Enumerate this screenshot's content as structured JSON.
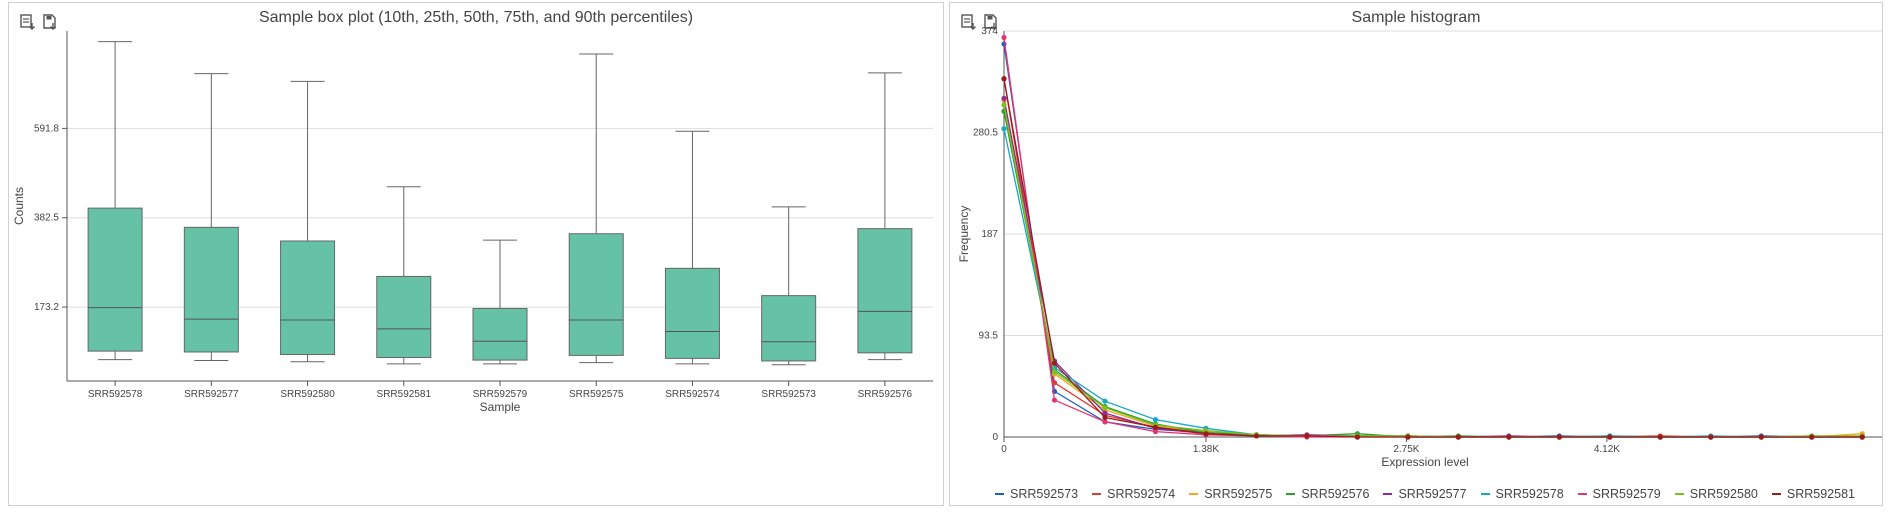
{
  "header": {
    "clipped_caption": ""
  },
  "chart_data": [
    {
      "type": "box",
      "title": "Sample box plot (10th, 25th, 50th, 75th, and 90th percentiles)",
      "xlabel": "Sample",
      "ylabel": "Counts",
      "ylim": [
        0,
        820
      ],
      "yticks": [
        173.2,
        382.5,
        591.8
      ],
      "ytick_labels": [
        "173.2",
        "382.5",
        "591.8"
      ],
      "box_color": "#66c2a5",
      "categories": [
        "SRR592578",
        "SRR592577",
        "SRR592580",
        "SRR592581",
        "SRR592579",
        "SRR592575",
        "SRR592574",
        "SRR592573",
        "SRR592576"
      ],
      "boxes": [
        {
          "p10": 50,
          "p25": 70,
          "p50": 172,
          "p75": 405,
          "p90": 795
        },
        {
          "p10": 48,
          "p25": 68,
          "p50": 145,
          "p75": 360,
          "p90": 720
        },
        {
          "p10": 45,
          "p25": 62,
          "p50": 143,
          "p75": 328,
          "p90": 702
        },
        {
          "p10": 40,
          "p25": 55,
          "p50": 122,
          "p75": 245,
          "p90": 455
        },
        {
          "p10": 40,
          "p25": 49,
          "p50": 93,
          "p75": 170,
          "p90": 330
        },
        {
          "p10": 43,
          "p25": 60,
          "p50": 143,
          "p75": 345,
          "p90": 766
        },
        {
          "p10": 40,
          "p25": 53,
          "p50": 116,
          "p75": 264,
          "p90": 585
        },
        {
          "p10": 38,
          "p25": 47,
          "p50": 92,
          "p75": 200,
          "p90": 408
        },
        {
          "p10": 50,
          "p25": 66,
          "p50": 163,
          "p75": 357,
          "p90": 722
        }
      ]
    },
    {
      "type": "line",
      "title": "Sample histogram",
      "xlabel": "Expression level",
      "ylabel": "Frequency",
      "xlim": [
        0,
        6000
      ],
      "ylim": [
        0,
        374
      ],
      "xticks": [
        0,
        1380,
        2750,
        4120
      ],
      "xtick_labels": [
        "0",
        "1.38K",
        "2.75K",
        "4.12K"
      ],
      "yticks": [
        0,
        93.5,
        187,
        280.5,
        374
      ],
      "ytick_labels": [
        "0",
        "93.5",
        "187",
        "280.5",
        "374"
      ],
      "x": [
        0,
        345,
        690,
        1035,
        1380,
        1725,
        2070,
        2415,
        2760,
        3105,
        3450,
        3795,
        4140,
        4485,
        4830,
        5175,
        5520,
        5865
      ],
      "series": [
        {
          "name": "SRR592573",
          "color": "#1f5fbf",
          "values": [
            362,
            42,
            14,
            7,
            4,
            2,
            1,
            1,
            1,
            0,
            0,
            1,
            0,
            0,
            0,
            1,
            0,
            0
          ]
        },
        {
          "name": "SRR592574",
          "color": "#e03c31",
          "values": [
            330,
            50,
            20,
            9,
            4,
            2,
            1,
            1,
            0,
            0,
            0,
            0,
            0,
            1,
            0,
            0,
            0,
            0
          ]
        },
        {
          "name": "SRR592575",
          "color": "#f5a623",
          "values": [
            310,
            58,
            25,
            10,
            5,
            2,
            1,
            0,
            1,
            0,
            0,
            0,
            0,
            0,
            0,
            0,
            0,
            3
          ]
        },
        {
          "name": "SRR592576",
          "color": "#2ca02c",
          "values": [
            300,
            62,
            28,
            12,
            4,
            2,
            1,
            3,
            0,
            1,
            0,
            0,
            1,
            0,
            0,
            0,
            1,
            0
          ]
        },
        {
          "name": "SRR592577",
          "color": "#8e2c9a",
          "values": [
            312,
            70,
            22,
            8,
            3,
            1,
            2,
            1,
            0,
            0,
            1,
            0,
            0,
            0,
            0,
            0,
            0,
            0
          ]
        },
        {
          "name": "SRR592578",
          "color": "#17a8c4",
          "values": [
            284,
            64,
            33,
            16,
            8,
            2,
            1,
            0,
            1,
            0,
            0,
            0,
            1,
            0,
            1,
            0,
            0,
            0
          ]
        },
        {
          "name": "SRR592579",
          "color": "#e8336e",
          "values": [
            368,
            34,
            14,
            5,
            2,
            1,
            0,
            0,
            0,
            0,
            0,
            0,
            0,
            0,
            0,
            0,
            0,
            0
          ]
        },
        {
          "name": "SRR592580",
          "color": "#7cbf1f",
          "values": [
            306,
            60,
            27,
            11,
            6,
            2,
            1,
            1,
            1,
            0,
            0,
            0,
            0,
            0,
            0,
            0,
            1,
            1
          ]
        },
        {
          "name": "SRR592581",
          "color": "#9b1b1b",
          "values": [
            330,
            68,
            18,
            9,
            3,
            1,
            1,
            0,
            0,
            0,
            0,
            0,
            0,
            0,
            0,
            0,
            0,
            0
          ]
        }
      ]
    }
  ]
}
